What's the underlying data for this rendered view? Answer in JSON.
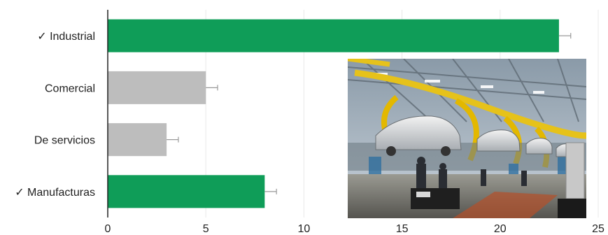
{
  "chart_data": {
    "type": "bar",
    "orientation": "horizontal",
    "title": "",
    "xlabel": "",
    "ylabel": "",
    "categories": [
      "✓ Industrial",
      "Comercial",
      "De servicios",
      "✓ Manufacturas"
    ],
    "values": [
      23,
      5,
      3,
      8
    ],
    "error": [
      0.6,
      0.6,
      0.6,
      0.6
    ],
    "selected": [
      true,
      false,
      false,
      true
    ],
    "xlim": [
      0,
      25
    ],
    "xticks": [
      "0",
      "5",
      "10",
      "15",
      "20",
      "25"
    ],
    "grid": true,
    "legend": "none"
  },
  "colors": {
    "selected_bar": "#0f9d58",
    "unselected_bar": "#bdbdbd",
    "grid": "#e8e8e8",
    "axis": "#222222",
    "error_bar": "#999999"
  },
  "image": {
    "subject": "car-assembly-line-photo"
  }
}
